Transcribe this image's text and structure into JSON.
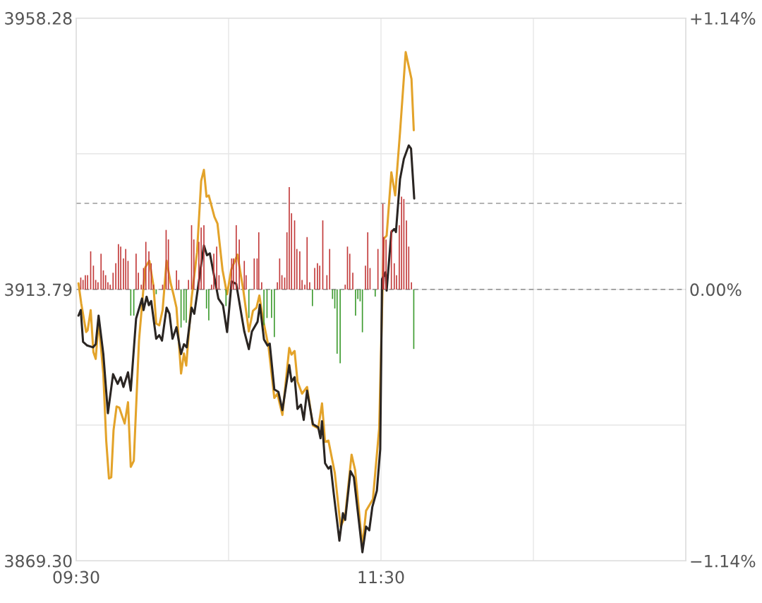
{
  "chart_data": {
    "type": "line",
    "xlim": [
      9.5,
      13.5
    ],
    "xticks": [
      {
        "value": 9.5,
        "label": "09:30"
      },
      {
        "value": 10.5,
        "label": null
      },
      {
        "value": 11.5,
        "label": "11:30"
      },
      {
        "value": 12.5,
        "label": null
      },
      {
        "value": 13.5,
        "label": null
      }
    ],
    "ylim": [
      3869.3,
      3958.28
    ],
    "yticks": [
      {
        "value": 3869.3,
        "label": "3869.30"
      },
      {
        "value": 3891.55,
        "label": null
      },
      3913.79,
      {
        "value": 3936.03,
        "label": null
      },
      3958.28
    ],
    "y2lim": [
      -1.14,
      1.14
    ],
    "y2ticks": [
      {
        "value": -1.14,
        "label": "−1.14%"
      },
      {
        "value": 0,
        "label": "0.00%"
      },
      {
        "value": 1.14,
        "label": "+1.14%"
      }
    ],
    "grid": true,
    "ref_lines": [
      {
        "axis": "y",
        "value": 3913.79,
        "color": "#9a9a9a",
        "line_style": "dashed"
      },
      {
        "axis": "y",
        "value": 3927.9,
        "color": "#9a9a9a",
        "line_style": "dashed"
      }
    ],
    "series": [
      {
        "type": "bar",
        "axis": "y2",
        "x": [
          9.53,
          9.545,
          9.56,
          9.575,
          9.595,
          9.613,
          9.628,
          9.643,
          9.663,
          9.678,
          9.693,
          9.708,
          9.723,
          9.742,
          9.76,
          9.777,
          9.792,
          9.81,
          9.825,
          9.84,
          9.858,
          9.878,
          9.893,
          9.908,
          9.927,
          9.942,
          9.957,
          9.977,
          9.992,
          10.007,
          10.025,
          10.067,
          10.09,
          10.105,
          10.158,
          10.173,
          10.188,
          10.207,
          10.222,
          10.237,
          10.257,
          10.272,
          10.305,
          10.32,
          10.338,
          10.355,
          10.37,
          10.388,
          10.403,
          10.422,
          10.437,
          10.483,
          10.52,
          10.532,
          10.55,
          10.57,
          10.603,
          10.615,
          10.633,
          10.668,
          10.687,
          10.698,
          10.717,
          10.732,
          10.752,
          10.782,
          10.8,
          10.82,
          10.835,
          10.85,
          10.868,
          10.883,
          10.898,
          10.913,
          10.933,
          10.948,
          10.967,
          10.982,
          11.0,
          11.015,
          11.032,
          11.05,
          11.065,
          11.083,
          11.098,
          11.118,
          11.145,
          11.163,
          11.182,
          11.197,
          11.212,
          11.232,
          11.265,
          11.28,
          11.295,
          11.315,
          11.333,
          11.348,
          11.363,
          11.378,
          11.398,
          11.413,
          11.428,
          11.462,
          11.48,
          11.512,
          11.518,
          11.533,
          11.568,
          11.587,
          11.602,
          11.62,
          11.635,
          11.65,
          11.667,
          11.682,
          11.7,
          11.715
        ],
        "values": [
          0.05,
          0.04,
          0.06,
          0.06,
          0.16,
          0.1,
          0.04,
          0.03,
          0.15,
          0.08,
          0.06,
          0.03,
          0.02,
          0.07,
          0.11,
          0.19,
          0.18,
          0.13,
          0.17,
          0.12,
          -0.11,
          -0.11,
          0.15,
          0.07,
          0.02,
          0.09,
          0.2,
          0.16,
          0.11,
          0.02,
          -0.02,
          0.02,
          0.25,
          0.21,
          0.08,
          0.04,
          -0.16,
          -0.13,
          -0.14,
          0.04,
          0.27,
          0.21,
          0.2,
          0.26,
          0.27,
          -0.08,
          -0.13,
          0.02,
          0.15,
          0.18,
          0.06,
          -0.07,
          0.13,
          0.13,
          0.27,
          0.21,
          0.12,
          0.06,
          -0.12,
          0.13,
          0.13,
          0.24,
          0.03,
          -0.15,
          -0.12,
          -0.12,
          -0.2,
          0.03,
          0.13,
          0.06,
          0.05,
          0.24,
          0.43,
          0.32,
          0.29,
          0.17,
          0.16,
          0.04,
          0.02,
          0.22,
          0.03,
          -0.07,
          0.09,
          0.11,
          0.1,
          0.29,
          0.06,
          0.17,
          -0.04,
          -0.08,
          -0.27,
          -0.31,
          0.02,
          0.18,
          0.15,
          0.07,
          -0.11,
          -0.04,
          -0.05,
          -0.18,
          0.1,
          0.24,
          0.09,
          -0.03,
          0.17,
          0.36,
          0.22,
          0.21,
          0.25,
          0.11,
          0.06,
          0.27,
          0.39,
          0.38,
          0.29,
          0.18,
          0.03,
          -0.25
        ],
        "colors": [
          "#c23a3a",
          "#c23a3a",
          "#c23a3a",
          "#c23a3a",
          "#c23a3a",
          "#c23a3a",
          "#c23a3a",
          "#c23a3a",
          "#c23a3a",
          "#c23a3a",
          "#c23a3a",
          "#c23a3a",
          "#c23a3a",
          "#c23a3a",
          "#c23a3a",
          "#c23a3a",
          "#c23a3a",
          "#c23a3a",
          "#c23a3a",
          "#c23a3a",
          "#3d9b2f",
          "#3d9b2f",
          "#c23a3a",
          "#c23a3a",
          "#c23a3a",
          "#c23a3a",
          "#c23a3a",
          "#c23a3a",
          "#c23a3a",
          "#c23a3a",
          "#3d9b2f",
          "#c23a3a",
          "#c23a3a",
          "#c23a3a",
          "#c23a3a",
          "#c23a3a",
          "#3d9b2f",
          "#3d9b2f",
          "#3d9b2f",
          "#c23a3a",
          "#c23a3a",
          "#c23a3a",
          "#c23a3a",
          "#c23a3a",
          "#c23a3a",
          "#3d9b2f",
          "#3d9b2f",
          "#c23a3a",
          "#c23a3a",
          "#c23a3a",
          "#c23a3a",
          "#3d9b2f",
          "#c23a3a",
          "#c23a3a",
          "#c23a3a",
          "#c23a3a",
          "#c23a3a",
          "#c23a3a",
          "#3d9b2f",
          "#c23a3a",
          "#c23a3a",
          "#c23a3a",
          "#c23a3a",
          "#3d9b2f",
          "#3d9b2f",
          "#3d9b2f",
          "#3d9b2f",
          "#c23a3a",
          "#c23a3a",
          "#c23a3a",
          "#c23a3a",
          "#c23a3a",
          "#c23a3a",
          "#c23a3a",
          "#c23a3a",
          "#c23a3a",
          "#c23a3a",
          "#c23a3a",
          "#c23a3a",
          "#c23a3a",
          "#c23a3a",
          "#3d9b2f",
          "#c23a3a",
          "#c23a3a",
          "#c23a3a",
          "#c23a3a",
          "#c23a3a",
          "#c23a3a",
          "#3d9b2f",
          "#3d9b2f",
          "#3d9b2f",
          "#3d9b2f",
          "#c23a3a",
          "#c23a3a",
          "#c23a3a",
          "#c23a3a",
          "#3d9b2f",
          "#3d9b2f",
          "#3d9b2f",
          "#3d9b2f",
          "#c23a3a",
          "#c23a3a",
          "#c23a3a",
          "#3d9b2f",
          "#c23a3a",
          "#c23a3a",
          "#c23a3a",
          "#c23a3a",
          "#c23a3a",
          "#c23a3a",
          "#c23a3a",
          "#c23a3a",
          "#c23a3a",
          "#c23a3a",
          "#c23a3a",
          "#c23a3a",
          "#c23a3a",
          "#3d9b2f"
        ]
      },
      {
        "color": "#e3a32a",
        "x": [
          9.515,
          9.533,
          9.565,
          9.575,
          9.595,
          9.613,
          9.628,
          9.647,
          9.678,
          9.697,
          9.715,
          9.73,
          9.745,
          9.765,
          9.783,
          9.818,
          9.84,
          9.858,
          9.878,
          9.912,
          9.953,
          9.98,
          10.007,
          10.025,
          10.045,
          10.067,
          10.093,
          10.12,
          10.138,
          10.158,
          10.188,
          10.207,
          10.222,
          10.257,
          10.293,
          10.32,
          10.338,
          10.355,
          10.37,
          10.407,
          10.427,
          10.46,
          10.49,
          10.517,
          10.558,
          10.597,
          10.633,
          10.66,
          10.683,
          10.702,
          10.725,
          10.762,
          10.8,
          10.82,
          10.853,
          10.898,
          10.913,
          10.933,
          10.952,
          10.982,
          11.015,
          11.053,
          11.088,
          11.113,
          11.133,
          11.155,
          11.197,
          11.235,
          11.265,
          11.307,
          11.33,
          11.378,
          11.402,
          11.447,
          11.488,
          11.518,
          11.537,
          11.568,
          11.593,
          11.625,
          11.662,
          11.7,
          11.715
        ],
        "values": [
          3914.8,
          3911.5,
          3906.8,
          3907.1,
          3910.4,
          3903.5,
          3902.4,
          3908.7,
          3899.9,
          3889.0,
          3882.8,
          3883.0,
          3890.7,
          3894.6,
          3894.4,
          3891.8,
          3895.3,
          3884.7,
          3885.7,
          3905.4,
          3917.4,
          3918.5,
          3914.4,
          3908.2,
          3907.9,
          3910.4,
          3918.5,
          3914.8,
          3913.0,
          3910.8,
          3900.0,
          3903.3,
          3901.3,
          3912.3,
          3919.9,
          3931.6,
          3933.4,
          3929.0,
          3929.2,
          3925.7,
          3924.6,
          3917.0,
          3913.0,
          3917.0,
          3919.5,
          3913.6,
          3906.9,
          3910.3,
          3910.8,
          3912.8,
          3909.0,
          3904.4,
          3896.0,
          3896.7,
          3893.2,
          3904.2,
          3903.1,
          3903.7,
          3898.7,
          3896.7,
          3897.8,
          3891.5,
          3891.0,
          3895.1,
          3888.8,
          3889.0,
          3883.7,
          3874.9,
          3876.6,
          3886.7,
          3884.2,
          3871.6,
          3877.5,
          3879.4,
          3891.0,
          3922.1,
          3922.6,
          3933.0,
          3929.2,
          3939.6,
          3952.7,
          3948.3,
          3939.9
        ]
      },
      {
        "color": "#2a2522",
        "x": [
          9.515,
          9.53,
          9.545,
          9.572,
          9.61,
          9.628,
          9.647,
          9.678,
          9.708,
          9.742,
          9.772,
          9.792,
          9.81,
          9.84,
          9.858,
          9.893,
          9.932,
          9.942,
          9.962,
          9.977,
          9.992,
          10.025,
          10.045,
          10.063,
          10.093,
          10.112,
          10.132,
          10.158,
          10.188,
          10.207,
          10.225,
          10.257,
          10.275,
          10.338,
          10.358,
          10.377,
          10.433,
          10.463,
          10.49,
          10.52,
          10.55,
          10.603,
          10.633,
          10.653,
          10.69,
          10.705,
          10.732,
          10.755,
          10.77,
          10.8,
          10.827,
          10.853,
          10.898,
          10.913,
          10.933,
          10.952,
          10.975,
          10.993,
          11.015,
          11.053,
          11.088,
          11.103,
          11.113,
          11.133,
          11.155,
          11.17,
          11.19,
          11.227,
          11.25,
          11.265,
          11.3,
          11.322,
          11.378,
          11.402,
          11.423,
          11.443,
          11.473,
          11.495,
          11.507,
          11.53,
          11.537,
          11.568,
          11.587,
          11.598,
          11.625,
          11.65,
          11.682,
          11.697,
          11.718
        ],
        "values": [
          3909.5,
          3910.4,
          3905.2,
          3904.6,
          3904.3,
          3904.8,
          3909.5,
          3903.2,
          3893.5,
          3899.9,
          3898.3,
          3899.4,
          3897.8,
          3900.2,
          3897.2,
          3909.0,
          3912.3,
          3910.4,
          3912.6,
          3911.2,
          3911.9,
          3905.7,
          3906.3,
          3905.4,
          3910.8,
          3909.8,
          3905.7,
          3907.6,
          3903.2,
          3904.8,
          3904.3,
          3910.8,
          3909.8,
          3921.0,
          3919.4,
          3919.7,
          3912.3,
          3911.2,
          3906.8,
          3915.1,
          3914.7,
          3906.9,
          3904.0,
          3906.9,
          3908.5,
          3911.3,
          3905.6,
          3904.6,
          3904.9,
          3897.4,
          3897.0,
          3894.0,
          3901.4,
          3898.7,
          3899.4,
          3894.2,
          3894.9,
          3892.4,
          3897.2,
          3891.7,
          3891.2,
          3889.4,
          3892.2,
          3885.3,
          3884.4,
          3884.8,
          3880.3,
          3872.6,
          3877.1,
          3876.0,
          3884.0,
          3883.0,
          3870.7,
          3874.9,
          3874.3,
          3878.1,
          3880.8,
          3887.6,
          3915.5,
          3916.6,
          3913.6,
          3923.2,
          3923.7,
          3923.2,
          3931.9,
          3935.2,
          3937.4,
          3936.9,
          3928.7
        ]
      }
    ]
  }
}
